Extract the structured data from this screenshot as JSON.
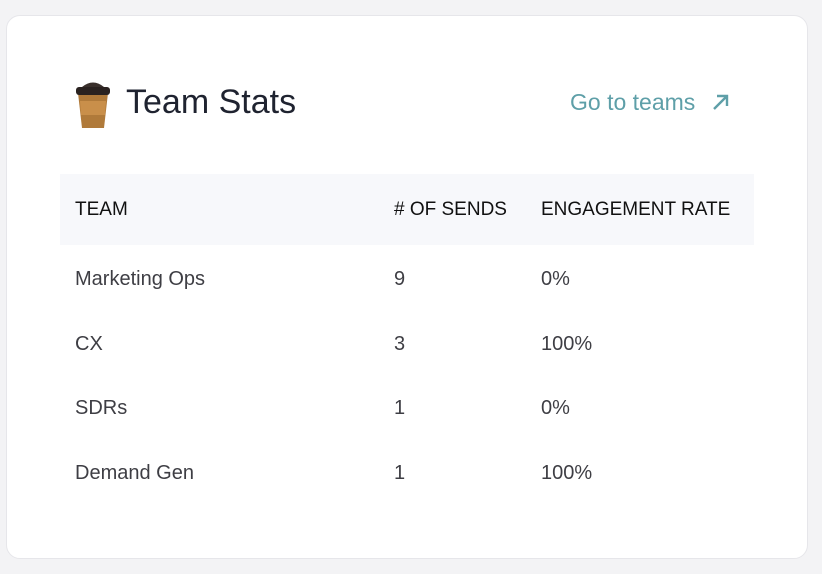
{
  "header": {
    "title": "Team Stats",
    "link": "Go to teams"
  },
  "table": {
    "columns": [
      "TEAM",
      "# OF SENDS",
      "ENGAGEMENT RATE"
    ],
    "rows": [
      [
        "Marketing Ops",
        "9",
        "0%"
      ],
      [
        "CX",
        "3",
        "100%"
      ],
      [
        "SDRs",
        "1",
        "0%"
      ],
      [
        "Demand Gen",
        "1",
        "100%"
      ]
    ]
  }
}
